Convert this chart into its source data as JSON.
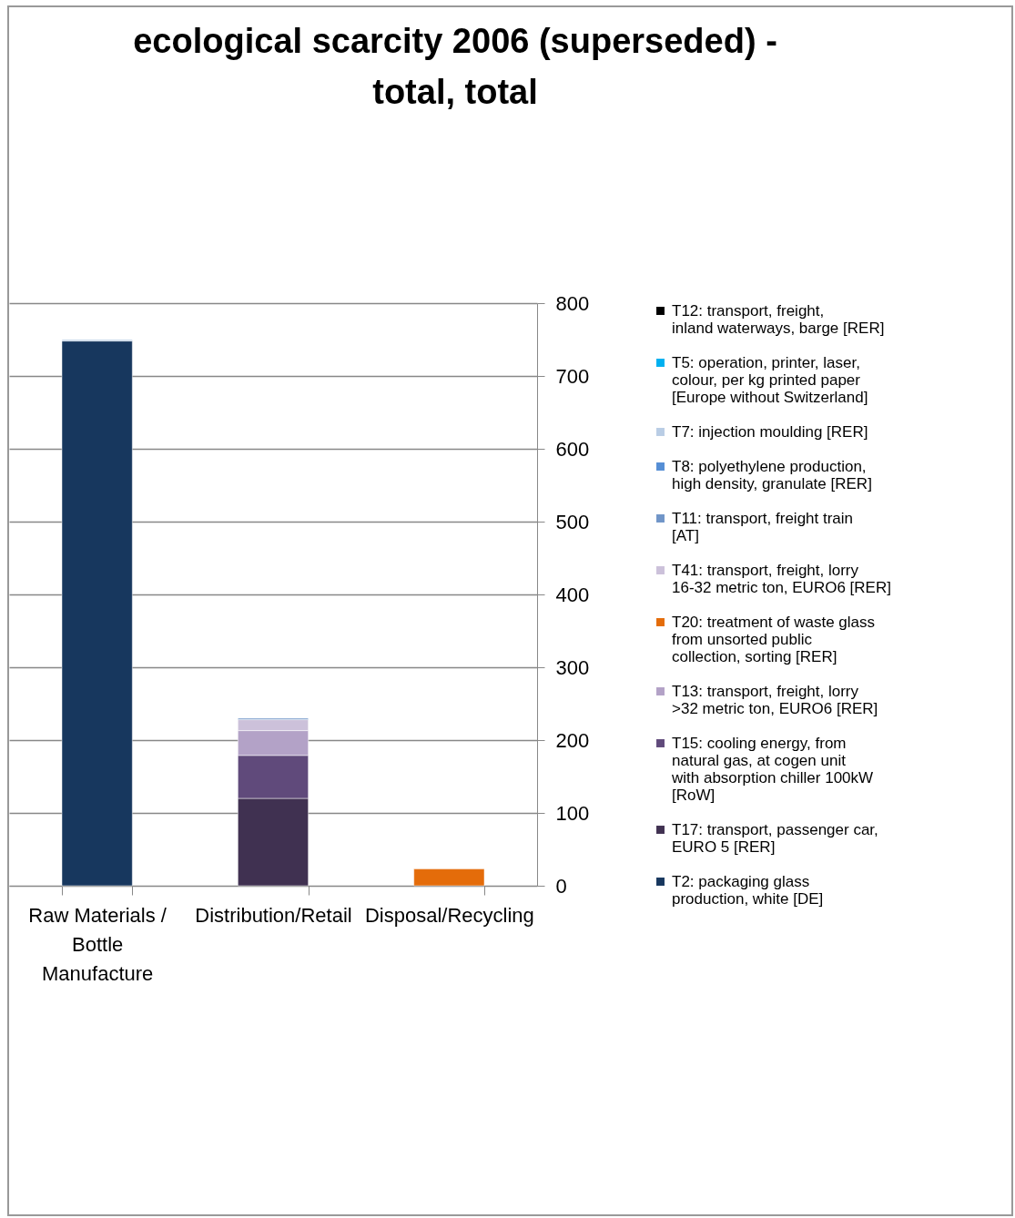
{
  "chart_data": {
    "type": "bar",
    "title": "ecological scarcity 2006 (superseded) - total, total",
    "categories": [
      "Raw Materials / Bottle Manufacture",
      "Distribution/Retail",
      "Disposal/Recycling"
    ],
    "stacked": true,
    "ylim": [
      0,
      800
    ],
    "yticks": [
      0,
      100,
      200,
      300,
      400,
      500,
      600,
      700,
      800
    ],
    "grid": "y",
    "legend": "right",
    "series": [
      {
        "name": "T2: packaging glass production, white [DE]",
        "color": "#17375e",
        "values": [
          748,
          null,
          null
        ]
      },
      {
        "name": "T17: transport, passenger car, EURO 5 [RER]",
        "color": "#403151",
        "values": [
          null,
          120,
          null
        ]
      },
      {
        "name": "T15: cooling energy, from natural gas, at cogen unit with absorption chiller 100kW [RoW]",
        "color": "#604a7b",
        "values": [
          null,
          59,
          null
        ]
      },
      {
        "name": "T13: transport, freight, lorry >32 metric ton, EURO6 [RER]",
        "color": "#b3a2c7",
        "values": [
          null,
          34,
          null
        ]
      },
      {
        "name": "T20: treatment of waste glass from unsorted public collection, sorting [RER]",
        "color": "#e46c0a",
        "values": [
          null,
          null,
          23
        ]
      },
      {
        "name": "T41: transport, freight, lorry 16-32 metric ton, EURO6 [RER]",
        "color": "#ccc1da",
        "values": [
          null,
          15,
          null
        ]
      },
      {
        "name": "T11: transport, freight train [AT]",
        "color": "#7095c8",
        "values": [
          null,
          2,
          null
        ]
      },
      {
        "name": "T8: polyethylene production, high density, granulate [RER]",
        "color": "#558ed5",
        "values": [
          null,
          null,
          null
        ]
      },
      {
        "name": "T7: injection moulding [RER]",
        "color": "#b9cde5",
        "values": [
          2,
          null,
          null
        ]
      },
      {
        "name": "T5: operation, printer, laser, colour, per kg printed paper [Europe without Switzerland]",
        "color": "#00b0f0",
        "values": [
          null,
          null,
          null
        ]
      },
      {
        "name": "T12: transport, freight, inland waterways, barge [RER]",
        "color": "#000000",
        "values": [
          null,
          null,
          null
        ]
      }
    ]
  }
}
